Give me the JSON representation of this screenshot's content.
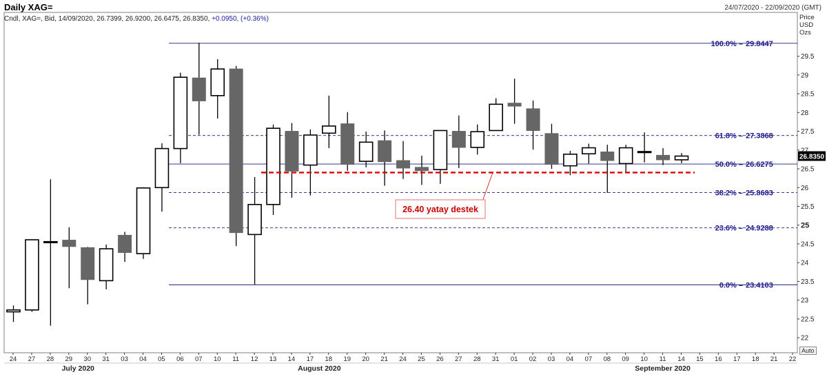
{
  "header": {
    "title": "Daily XAG=",
    "date_range": "24/07/2020 - 22/09/2020 (GMT)",
    "info_prefix": "Cndl, XAG=, Bid, 14/09/2020, 26.7399, 26.9200, 26.6475, 26.8350,",
    "info_change": "+0.0950, (+0.36%)"
  },
  "price_axis": {
    "unit_lines": [
      "Price",
      "USD",
      "Ozs"
    ],
    "auto_label": "Auto",
    "current_price": "26.8350"
  },
  "colors": {
    "frame": "#808080",
    "up_fill": "#ffffff",
    "down_fill": "#666666",
    "candle_edge": "#000000",
    "fib_line": "#1e1e78",
    "fib_text": "#1a1a8c",
    "support": "#e00000",
    "annotation_text": "#cc0000",
    "current_price_box": "#000000"
  },
  "chart_data": {
    "type": "candlestick",
    "ylim": [
      21.6,
      30.3
    ],
    "y_ticks": [
      "22",
      "22.5",
      "23",
      "23.5",
      "24",
      "24.5",
      "25",
      "25.5",
      "26",
      "26.5",
      "27",
      "27.5",
      "28",
      "28.5",
      "29",
      "29.5"
    ],
    "x_ticks": [
      "24",
      "27",
      "28",
      "29",
      "30",
      "31",
      "03",
      "04",
      "05",
      "06",
      "07",
      "10",
      "11",
      "12",
      "13",
      "14",
      "17",
      "18",
      "19",
      "20",
      "21",
      "24",
      "25",
      "26",
      "27",
      "28",
      "31",
      "01",
      "02",
      "03",
      "04",
      "07",
      "08",
      "09",
      "10",
      "11",
      "14",
      "15",
      "16",
      "17",
      "18",
      "21",
      "22"
    ],
    "months": [
      {
        "label": "July 2020",
        "at": 3.5
      },
      {
        "label": "August 2020",
        "at": 16.5
      },
      {
        "label": "September 2020",
        "at": 35
      }
    ],
    "candles": [
      {
        "date": "24/07",
        "o": 22.69,
        "h": 22.86,
        "l": 22.42,
        "c": 22.74
      },
      {
        "date": "27/07",
        "o": 22.74,
        "h": 24.62,
        "l": 22.69,
        "c": 24.61
      },
      {
        "date": "28/07",
        "o": 24.55,
        "h": 26.22,
        "l": 22.32,
        "c": 24.56
      },
      {
        "date": "29/07",
        "o": 24.6,
        "h": 24.94,
        "l": 23.32,
        "c": 24.43
      },
      {
        "date": "30/07",
        "o": 24.4,
        "h": 24.42,
        "l": 22.89,
        "c": 23.55
      },
      {
        "date": "31/07",
        "o": 23.52,
        "h": 24.48,
        "l": 23.29,
        "c": 24.37
      },
      {
        "date": "03/08",
        "o": 24.73,
        "h": 24.82,
        "l": 24.02,
        "c": 24.27
      },
      {
        "date": "04/08",
        "o": 24.24,
        "h": 26.01,
        "l": 24.1,
        "c": 25.99
      },
      {
        "date": "05/08",
        "o": 26.0,
        "h": 27.18,
        "l": 25.36,
        "c": 27.04
      },
      {
        "date": "06/08",
        "o": 27.04,
        "h": 29.06,
        "l": 26.65,
        "c": 28.94
      },
      {
        "date": "07/08",
        "o": 28.92,
        "h": 29.86,
        "l": 27.41,
        "c": 28.31
      },
      {
        "date": "10/08",
        "o": 28.45,
        "h": 29.42,
        "l": 27.84,
        "c": 29.16
      },
      {
        "date": "11/08",
        "o": 29.16,
        "h": 29.24,
        "l": 24.44,
        "c": 24.8
      },
      {
        "date": "12/08",
        "o": 24.75,
        "h": 26.28,
        "l": 23.42,
        "c": 25.55
      },
      {
        "date": "13/08",
        "o": 25.55,
        "h": 27.68,
        "l": 25.27,
        "c": 27.58
      },
      {
        "date": "14/08",
        "o": 27.5,
        "h": 27.72,
        "l": 25.73,
        "c": 26.44
      },
      {
        "date": "17/08",
        "o": 26.6,
        "h": 27.55,
        "l": 25.79,
        "c": 27.4
      },
      {
        "date": "18/08",
        "o": 27.45,
        "h": 28.45,
        "l": 27.05,
        "c": 27.64
      },
      {
        "date": "19/08",
        "o": 27.7,
        "h": 28.01,
        "l": 26.45,
        "c": 26.62
      },
      {
        "date": "20/08",
        "o": 26.7,
        "h": 27.49,
        "l": 26.54,
        "c": 27.21
      },
      {
        "date": "21/08",
        "o": 27.25,
        "h": 27.52,
        "l": 26.05,
        "c": 26.69
      },
      {
        "date": "24/08",
        "o": 26.72,
        "h": 27.24,
        "l": 26.23,
        "c": 26.52
      },
      {
        "date": "25/08",
        "o": 26.54,
        "h": 26.85,
        "l": 26.07,
        "c": 26.45
      },
      {
        "date": "26/08",
        "o": 26.48,
        "h": 27.53,
        "l": 26.1,
        "c": 27.52
      },
      {
        "date": "27/08",
        "o": 27.5,
        "h": 27.92,
        "l": 26.52,
        "c": 27.07
      },
      {
        "date": "28/08",
        "o": 27.07,
        "h": 27.68,
        "l": 26.88,
        "c": 27.49
      },
      {
        "date": "31/08",
        "o": 27.52,
        "h": 28.38,
        "l": 27.52,
        "c": 28.22
      },
      {
        "date": "01/09",
        "o": 28.25,
        "h": 28.9,
        "l": 27.7,
        "c": 28.17
      },
      {
        "date": "02/09",
        "o": 28.1,
        "h": 28.32,
        "l": 27.01,
        "c": 27.52
      },
      {
        "date": "03/09",
        "o": 27.44,
        "h": 27.7,
        "l": 26.5,
        "c": 26.62
      },
      {
        "date": "04/09",
        "o": 26.58,
        "h": 26.98,
        "l": 26.33,
        "c": 26.89
      },
      {
        "date": "07/09",
        "o": 26.9,
        "h": 27.17,
        "l": 26.64,
        "c": 27.06
      },
      {
        "date": "08/09",
        "o": 26.95,
        "h": 27.14,
        "l": 25.86,
        "c": 26.72
      },
      {
        "date": "09/09",
        "o": 26.64,
        "h": 27.14,
        "l": 26.42,
        "c": 27.06
      },
      {
        "date": "10/09",
        "o": 26.96,
        "h": 27.47,
        "l": 26.67,
        "c": 26.96
      },
      {
        "date": "11/09",
        "o": 26.86,
        "h": 27.05,
        "l": 26.6,
        "c": 26.74
      },
      {
        "date": "14/09",
        "o": 26.74,
        "h": 26.92,
        "l": 26.65,
        "c": 26.84
      }
    ],
    "fib_levels": [
      {
        "label": "100.0%",
        "value": "29.8447",
        "style": "solid"
      },
      {
        "label": "61.8%",
        "value": "27.3868",
        "style": "dashed"
      },
      {
        "label": "50.0%",
        "value": "26.6275",
        "style": "solid"
      },
      {
        "label": "38.2%",
        "value": "25.8683",
        "style": "dashed"
      },
      {
        "label": "23.6%",
        "value": "24.9288",
        "style": "dashed"
      },
      {
        "label": "0.0%",
        "value": "23.4103",
        "style": "solid"
      }
    ],
    "support": {
      "value": 26.4,
      "label": "26.40 yatay destek"
    }
  }
}
